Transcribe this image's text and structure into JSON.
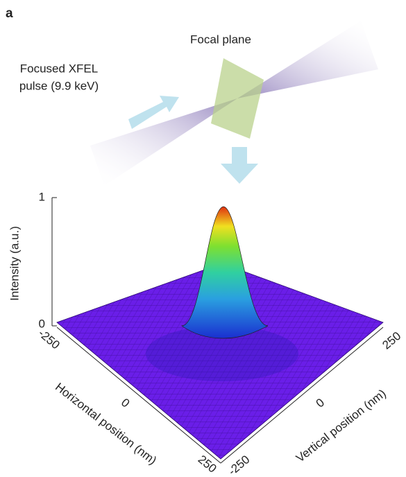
{
  "panel_label": "a",
  "schematic": {
    "focal_plane": "Focal plane",
    "pulse_line1": "Focused XFEL",
    "pulse_line2": "pulse (9.9 keV)"
  },
  "plot": {
    "z_label": "Intensity (a.u.)",
    "z_ticks": [
      0,
      1
    ],
    "x_label": "Horizontal position (nm)",
    "x_ticks": [
      -250,
      0,
      250
    ],
    "y_label": "Vertical position (nm)",
    "y_ticks": [
      -250,
      0,
      250
    ]
  }
}
